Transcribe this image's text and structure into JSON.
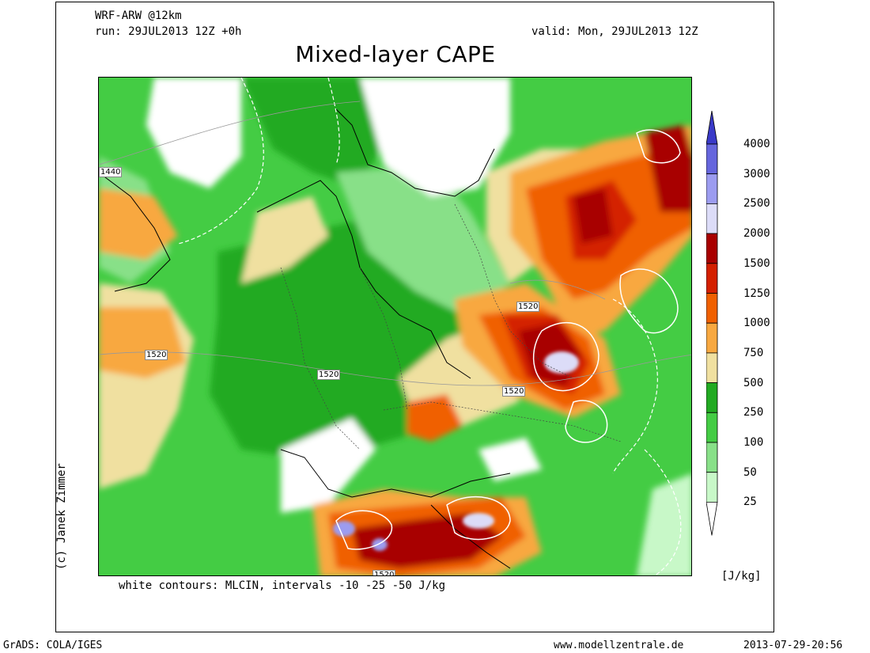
{
  "header": {
    "model": "WRF-ARW @12km",
    "run": "run: 29JUL2013 12Z +0h",
    "valid": "valid: Mon, 29JUL2013 12Z",
    "title": "Mixed-layer CAPE"
  },
  "map": {
    "contour_labels": [
      "1440",
      "1520",
      "1520",
      "1520",
      "1520",
      "1520"
    ],
    "footnote": "white contours: MLCIN, intervals -10 -25 -50 J/kg"
  },
  "colorbar": {
    "levels": [
      "4000",
      "3000",
      "2500",
      "2000",
      "1500",
      "1250",
      "1000",
      "750",
      "500",
      "250",
      "100",
      "50",
      "25"
    ],
    "colors": {
      "c4000": "#3a3ac8",
      "c3000": "#6666dd",
      "c2500": "#9c9cf0",
      "c2000": "#dcdcf8",
      "c1500": "#a80000",
      "c1250": "#d42000",
      "c1000": "#f06000",
      "c750": "#f8a840",
      "c500": "#f0e0a0",
      "c250": "#22aa22",
      "c100": "#44cc44",
      "c50": "#88e088",
      "c25": "#c8f8c8",
      "c0": "#ffffff"
    },
    "unit": "[J/kg]"
  },
  "footer": {
    "left": "GrADS: COLA/IGES",
    "center": "www.modellzentrale.de",
    "right": "2013-07-29-20:56",
    "credit": "(c) Janek Zimmer"
  }
}
